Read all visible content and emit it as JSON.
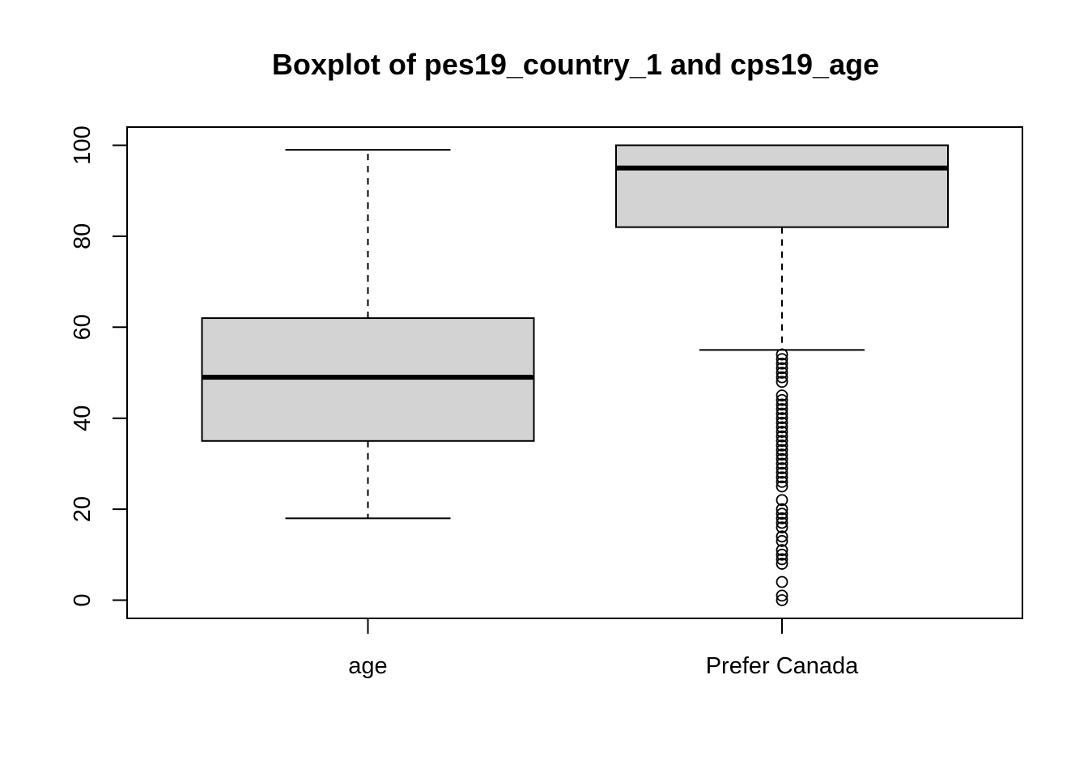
{
  "chart_data": {
    "type": "boxplot",
    "title": "Boxplot of pes19_country_1 and cps19_age",
    "xlabel": "",
    "ylabel": "",
    "ylim": [
      -4,
      104
    ],
    "y_ticks": [
      0,
      20,
      40,
      60,
      80,
      100
    ],
    "categories": [
      "age",
      "Prefer Canada"
    ],
    "boxes": [
      {
        "category": "age",
        "whisker_low": 18,
        "q1": 35,
        "median": 49,
        "q3": 62,
        "whisker_high": 99,
        "outliers": []
      },
      {
        "category": "Prefer Canada",
        "whisker_low": 55,
        "q1": 82,
        "median": 95,
        "q3": 100,
        "whisker_high": 100,
        "outliers": [
          0,
          1,
          4,
          8,
          9,
          10,
          11,
          13,
          14,
          16,
          17,
          18,
          19,
          20,
          22,
          25,
          26,
          27,
          28,
          29,
          30,
          31,
          32,
          33,
          34,
          35,
          36,
          37,
          38,
          39,
          40,
          41,
          42,
          43,
          44,
          45,
          48,
          49,
          50,
          51,
          52,
          53,
          54
        ]
      }
    ],
    "colors": {
      "box_fill": "#d3d3d3",
      "stroke": "#000000"
    },
    "grid": false,
    "legend": "none"
  }
}
